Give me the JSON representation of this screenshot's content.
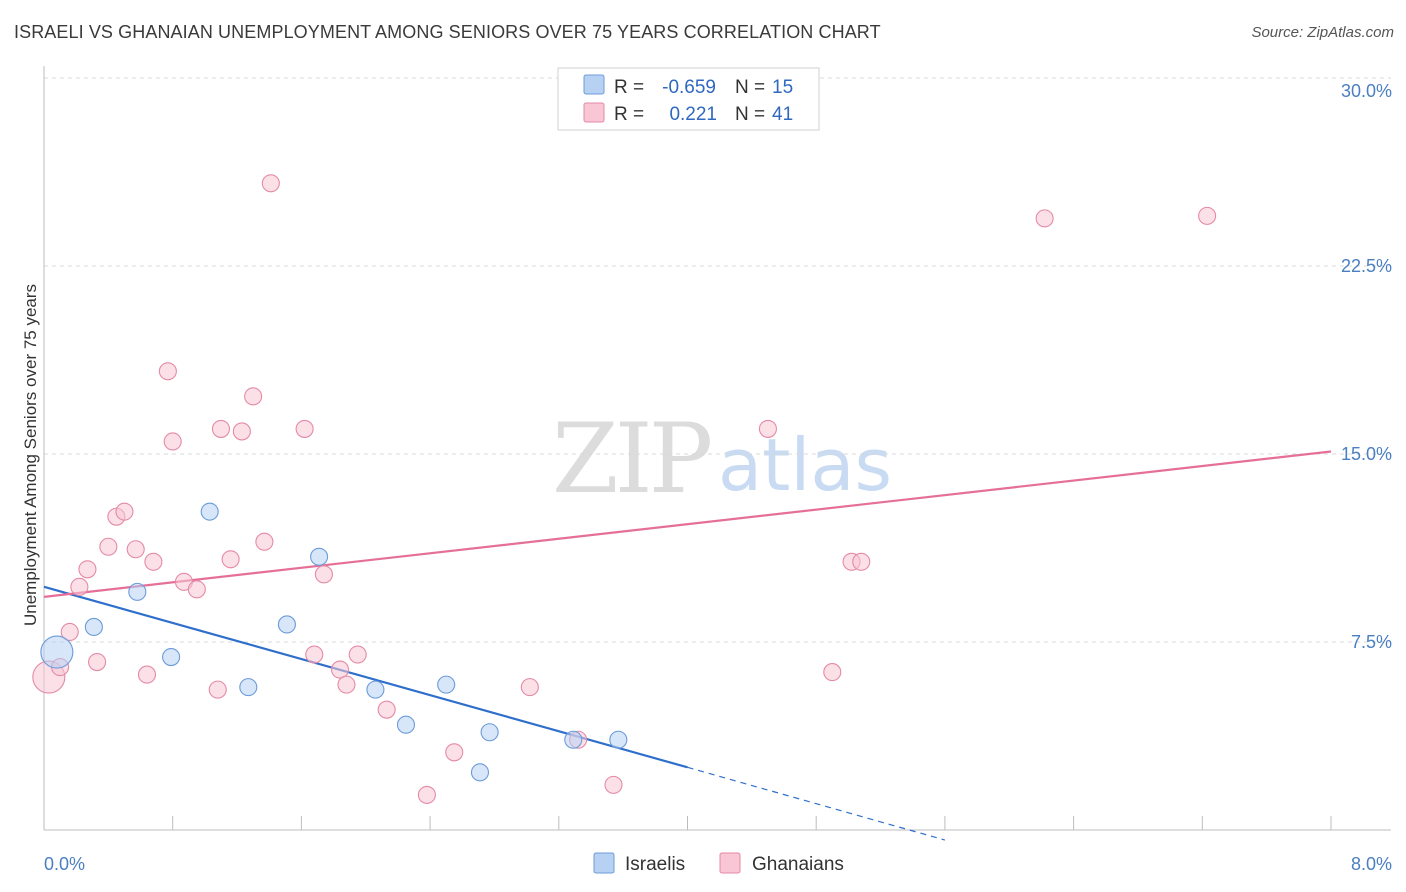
{
  "header": {
    "title": "ISRAELI VS GHANAIAN UNEMPLOYMENT AMONG SENIORS OVER 75 YEARS CORRELATION CHART",
    "source": "Source: ZipAtlas.com"
  },
  "watermark": {
    "zip": "ZIP",
    "atlas": "atlas"
  },
  "colors": {
    "israelis_fill": "#b7d1f3",
    "israelis_stroke": "#6c9bd9",
    "israelis_line": "#2f6fcc",
    "ghanaians_fill": "#f8c6d5",
    "ghanaians_stroke": "#e58aa6",
    "ghanaians_line": "#e56f97",
    "tick_label": "#4a7fc1",
    "grid": "#d8d8d8"
  },
  "legend": {
    "rows": [
      {
        "series": "israelis",
        "r_label": "R =",
        "r_value": "-0.659",
        "n_label": "N =",
        "n_value": "15"
      },
      {
        "series": "ghanaians",
        "r_label": "R =",
        "r_value": "0.221",
        "n_label": "N =",
        "n_value": "41"
      }
    ]
  },
  "chart_data": {
    "type": "scatter",
    "title": "ISRAELI VS GHANAIAN UNEMPLOYMENT AMONG SENIORS OVER 75 YEARS CORRELATION CHART",
    "xlabel": "",
    "ylabel": "Unemployment Among Seniors over 75 years",
    "xlim": [
      0.0,
      8.0
    ],
    "ylim": [
      0.0,
      30.0
    ],
    "x_tick_labels": [
      "0.0%",
      "8.0%"
    ],
    "y_ticks": [
      7.5,
      15.0,
      22.5,
      30.0
    ],
    "y_tick_labels": [
      "7.5%",
      "15.0%",
      "22.5%",
      "30.0%"
    ],
    "grid": true,
    "legend_position": "bottom",
    "series": [
      {
        "name": "Israelis",
        "key": "israelis",
        "points": [
          {
            "x": 0.08,
            "y": 7.1,
            "big": true
          },
          {
            "x": 0.31,
            "y": 8.1
          },
          {
            "x": 0.58,
            "y": 9.5
          },
          {
            "x": 0.79,
            "y": 6.9
          },
          {
            "x": 1.03,
            "y": 12.7
          },
          {
            "x": 1.27,
            "y": 5.7
          },
          {
            "x": 1.51,
            "y": 8.2
          },
          {
            "x": 1.71,
            "y": 10.9
          },
          {
            "x": 2.06,
            "y": 5.6
          },
          {
            "x": 2.25,
            "y": 4.2
          },
          {
            "x": 2.5,
            "y": 5.8
          },
          {
            "x": 2.77,
            "y": 3.9
          },
          {
            "x": 2.71,
            "y": 2.3
          },
          {
            "x": 3.29,
            "y": 3.6
          },
          {
            "x": 3.57,
            "y": 3.6
          }
        ],
        "trend": {
          "x0": 0.0,
          "y0": 9.7,
          "x1": 4.0,
          "y1": 2.5,
          "dash_to_x": 5.6,
          "dash_to_y": -0.4
        }
      },
      {
        "name": "Ghanaians",
        "key": "ghanaians",
        "points": [
          {
            "x": 0.03,
            "y": 6.1,
            "big": true
          },
          {
            "x": 0.1,
            "y": 6.5
          },
          {
            "x": 0.16,
            "y": 7.9
          },
          {
            "x": 0.22,
            "y": 9.7
          },
          {
            "x": 0.27,
            "y": 10.4
          },
          {
            "x": 0.33,
            "y": 6.7
          },
          {
            "x": 0.4,
            "y": 11.3
          },
          {
            "x": 0.45,
            "y": 12.5
          },
          {
            "x": 0.5,
            "y": 12.7
          },
          {
            "x": 0.57,
            "y": 11.2
          },
          {
            "x": 0.64,
            "y": 6.2
          },
          {
            "x": 0.68,
            "y": 10.7
          },
          {
            "x": 0.77,
            "y": 18.3
          },
          {
            "x": 0.8,
            "y": 15.5
          },
          {
            "x": 0.87,
            "y": 9.9
          },
          {
            "x": 0.95,
            "y": 9.6
          },
          {
            "x": 1.08,
            "y": 5.6
          },
          {
            "x": 1.1,
            "y": 16.0
          },
          {
            "x": 1.16,
            "y": 10.8
          },
          {
            "x": 1.23,
            "y": 15.9
          },
          {
            "x": 1.3,
            "y": 17.3
          },
          {
            "x": 1.37,
            "y": 11.5
          },
          {
            "x": 1.41,
            "y": 25.8
          },
          {
            "x": 1.62,
            "y": 16.0
          },
          {
            "x": 1.68,
            "y": 7.0
          },
          {
            "x": 1.74,
            "y": 10.2
          },
          {
            "x": 1.84,
            "y": 6.4
          },
          {
            "x": 1.88,
            "y": 5.8
          },
          {
            "x": 1.95,
            "y": 7.0
          },
          {
            "x": 2.13,
            "y": 4.8
          },
          {
            "x": 2.38,
            "y": 1.4
          },
          {
            "x": 2.55,
            "y": 3.1
          },
          {
            "x": 3.02,
            "y": 5.7
          },
          {
            "x": 3.32,
            "y": 3.6
          },
          {
            "x": 3.54,
            "y": 1.8
          },
          {
            "x": 4.5,
            "y": 16.0
          },
          {
            "x": 4.9,
            "y": 6.3
          },
          {
            "x": 5.02,
            "y": 10.7
          },
          {
            "x": 5.08,
            "y": 10.7
          },
          {
            "x": 6.22,
            "y": 24.4
          },
          {
            "x": 7.23,
            "y": 24.5
          }
        ],
        "trend": {
          "x0": 0.0,
          "y0": 9.3,
          "x1": 8.0,
          "y1": 15.1
        }
      }
    ]
  },
  "bottom_legend": [
    {
      "key": "israelis",
      "label": "Israelis"
    },
    {
      "key": "ghanaians",
      "label": "Ghanaians"
    }
  ]
}
